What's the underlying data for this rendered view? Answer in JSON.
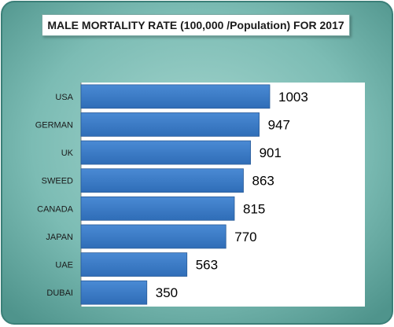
{
  "chart_data": {
    "type": "bar",
    "orientation": "horizontal",
    "title": "MALE MORTALITY RATE (100,000 /Population) FOR 2017",
    "xlabel": "",
    "ylabel": "",
    "categories": [
      "USA",
      "GERMAN",
      "UK",
      "SWEED",
      "CANADA",
      "JAPAN",
      "UAE",
      "DUBAI"
    ],
    "values": [
      1003,
      947,
      901,
      863,
      815,
      770,
      563,
      350
    ],
    "xlim": [
      0,
      1400
    ],
    "grid": false,
    "legend": "none",
    "colors": {
      "bar": "#3a78c3",
      "bar_stroke": "#2a5c99",
      "background": "#79b9b1",
      "plot_area": "#ffffff",
      "frame_border": "#3b7f78"
    }
  }
}
